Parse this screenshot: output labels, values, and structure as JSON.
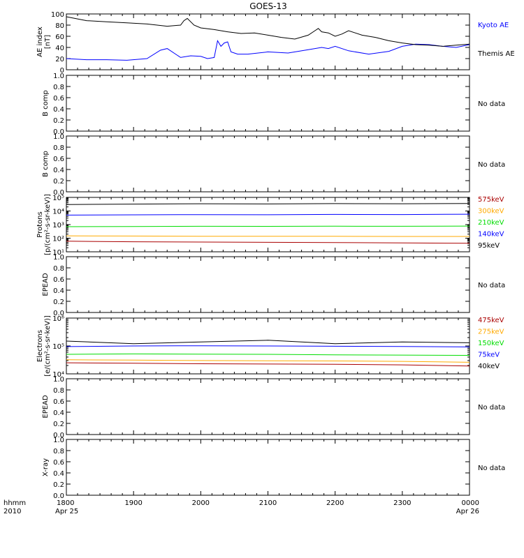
{
  "title": "GOES-13",
  "colors": {
    "black": "#000000",
    "blue": "#0000ff",
    "green": "#00dd00",
    "orange": "#ffaa00",
    "red": "#aa0000",
    "axis": "#000000"
  },
  "x_axis": {
    "ticks": [
      "1800",
      "1900",
      "2000",
      "2100",
      "2200",
      "2300",
      "0000"
    ],
    "row_labels": [
      "hhmm",
      "2010"
    ],
    "date_labels": [
      "Apr 25",
      "Apr 26"
    ]
  },
  "chart_data": [
    {
      "type": "line",
      "ylabel": [
        "AE index",
        "[nT]"
      ],
      "ylim": [
        0,
        100
      ],
      "yticks": [
        "0",
        "20",
        "40",
        "60",
        "80",
        "100"
      ],
      "series": [
        {
          "name": "Kyoto AE",
          "color": "#0000ff",
          "x": [
            0,
            0.3,
            0.6,
            0.9,
            1.2,
            1.4,
            1.5,
            1.7,
            1.85,
            2.0,
            2.1,
            2.2,
            2.25,
            2.3,
            2.35,
            2.4,
            2.45,
            2.5,
            2.55,
            2.7,
            3.0,
            3.3,
            3.6,
            3.8,
            3.9,
            4.0,
            4.2,
            4.5,
            4.8,
            5.0,
            5.2,
            5.4,
            5.6,
            5.8,
            6.0
          ],
          "y": [
            20,
            18,
            18,
            17,
            20,
            35,
            38,
            22,
            25,
            24,
            20,
            22,
            52,
            42,
            48,
            50,
            32,
            30,
            28,
            28,
            32,
            30,
            36,
            40,
            38,
            42,
            34,
            28,
            33,
            42,
            46,
            45,
            42,
            40,
            45
          ]
        },
        {
          "name": "Themis AE",
          "color": "#000000",
          "x": [
            0,
            0.3,
            0.6,
            0.9,
            1.2,
            1.5,
            1.7,
            1.75,
            1.8,
            1.9,
            2.0,
            2.2,
            2.4,
            2.6,
            2.8,
            3.0,
            3.2,
            3.4,
            3.6,
            3.7,
            3.75,
            3.8,
            3.9,
            4.0,
            4.1,
            4.2,
            4.4,
            4.6,
            4.8,
            5.0,
            5.2,
            5.4,
            5.6,
            5.8,
            6.0
          ],
          "y": [
            95,
            88,
            86,
            84,
            82,
            78,
            80,
            88,
            92,
            80,
            75,
            72,
            68,
            65,
            66,
            62,
            58,
            55,
            62,
            70,
            74,
            68,
            66,
            60,
            64,
            70,
            62,
            58,
            52,
            48,
            45,
            44,
            42,
            44,
            46
          ]
        }
      ],
      "legend": [
        {
          "label": "Kyoto AE",
          "color": "#0000ff"
        },
        {
          "label": "Themis AE",
          "color": "#000000"
        }
      ]
    },
    {
      "type": "line",
      "ylabel": [
        "B comp"
      ],
      "ylim": [
        0,
        1
      ],
      "yticks": [
        "0.0",
        "0.2",
        "0.4",
        "0.6",
        "0.8",
        "1.0"
      ],
      "series": [],
      "legend": [
        {
          "label": "No data",
          "color": "#000000"
        }
      ]
    },
    {
      "type": "line",
      "ylabel": [
        "B comp"
      ],
      "ylim": [
        0,
        1
      ],
      "yticks": [
        "0.0",
        "0.2",
        "0.4",
        "0.6",
        "0.8",
        "1.0"
      ],
      "series": [],
      "legend": [
        {
          "label": "No data",
          "color": "#000000"
        }
      ]
    },
    {
      "type": "line",
      "ylog": true,
      "ylabel": [
        "Protons",
        "[p/(cm²-s-sr-keV)]"
      ],
      "ylim": [
        10,
        100000
      ],
      "yticks": [
        "10¹",
        "10²",
        "10³",
        "10⁴",
        "10⁵"
      ],
      "series": [
        {
          "name": "95keV",
          "color": "#000000",
          "x": [
            0,
            1,
            2,
            3,
            4,
            5,
            6
          ],
          "y": [
            30000,
            32000,
            34000,
            33000,
            35000,
            34000,
            36000
          ]
        },
        {
          "name": "140keV",
          "color": "#0000ff",
          "x": [
            0,
            1,
            2,
            3,
            4,
            5,
            6
          ],
          "y": [
            5000,
            5200,
            5400,
            5300,
            5600,
            5500,
            5800
          ]
        },
        {
          "name": "210keV",
          "color": "#00dd00",
          "x": [
            0,
            1,
            2,
            3,
            4,
            5,
            6
          ],
          "y": [
            700,
            720,
            750,
            740,
            760,
            750,
            780
          ]
        },
        {
          "name": "300keV",
          "color": "#ffaa00",
          "x": [
            0,
            1,
            2,
            3,
            4,
            5,
            6
          ],
          "y": [
            150,
            145,
            140,
            140,
            138,
            135,
            135
          ]
        },
        {
          "name": "575keV",
          "color": "#aa0000",
          "x": [
            0,
            1,
            2,
            3,
            4,
            5,
            6
          ],
          "y": [
            60,
            55,
            52,
            50,
            48,
            45,
            42
          ]
        }
      ],
      "legend": [
        {
          "label": "575keV",
          "color": "#aa0000"
        },
        {
          "label": "300keV",
          "color": "#ffaa00"
        },
        {
          "label": "210keV",
          "color": "#00dd00"
        },
        {
          "label": "140keV",
          "color": "#0000ff"
        },
        {
          "label": "95keV",
          "color": "#000000"
        }
      ]
    },
    {
      "type": "line",
      "ylabel": [
        "EPEAD"
      ],
      "ylim": [
        0,
        1
      ],
      "yticks": [
        "0.0",
        "0.2",
        "0.4",
        "0.6",
        "0.8",
        "1.0"
      ],
      "series": [],
      "legend": [
        {
          "label": "No data",
          "color": "#000000"
        }
      ]
    },
    {
      "type": "line",
      "ylog": true,
      "ylabel": [
        "Electrons",
        "[e/(cm²-s-sr-keV)]"
      ],
      "ylim": [
        10000,
        1000000
      ],
      "yticks": [
        "10⁴",
        "10⁵",
        "10⁶"
      ],
      "series": [
        {
          "name": "40keV",
          "color": "#000000",
          "x": [
            0,
            1,
            2,
            3,
            4,
            5,
            6
          ],
          "y": [
            150000,
            120000,
            140000,
            160000,
            120000,
            140000,
            130000
          ]
        },
        {
          "name": "75keV",
          "color": "#0000ff",
          "x": [
            0,
            1,
            2,
            3,
            4,
            5,
            6
          ],
          "y": [
            95000,
            100000,
            102000,
            100000,
            98000,
            96000,
            92000
          ]
        },
        {
          "name": "150keV",
          "color": "#00dd00",
          "x": [
            0,
            1,
            2,
            3,
            4,
            5,
            6
          ],
          "y": [
            50000,
            52000,
            51000,
            50000,
            48000,
            47000,
            46000
          ]
        },
        {
          "name": "275keV",
          "color": "#ffaa00",
          "x": [
            0,
            1,
            2,
            3,
            4,
            5,
            6
          ],
          "y": [
            32000,
            31000,
            30000,
            29500,
            29000,
            28000,
            26000
          ]
        },
        {
          "name": "475keV",
          "color": "#aa0000",
          "x": [
            0,
            1,
            2,
            3,
            4,
            5,
            6
          ],
          "y": [
            25000,
            24000,
            23000,
            22500,
            22000,
            21000,
            19000
          ]
        }
      ],
      "legend": [
        {
          "label": "475keV",
          "color": "#aa0000"
        },
        {
          "label": "275keV",
          "color": "#ffaa00"
        },
        {
          "label": "150keV",
          "color": "#00dd00"
        },
        {
          "label": "75keV",
          "color": "#0000ff"
        },
        {
          "label": "40keV",
          "color": "#000000"
        }
      ]
    },
    {
      "type": "line",
      "ylabel": [
        "EPEAD"
      ],
      "ylim": [
        0,
        1
      ],
      "yticks": [
        "0.0",
        "0.2",
        "0.4",
        "0.6",
        "0.8",
        "1.0"
      ],
      "series": [],
      "legend": [
        {
          "label": "No data",
          "color": "#000000"
        }
      ]
    },
    {
      "type": "line",
      "ylabel": [
        "X-ray"
      ],
      "ylim": [
        0,
        1
      ],
      "yticks": [
        "0.0",
        "0.2",
        "0.4",
        "0.6",
        "0.8",
        "1.0"
      ],
      "series": [],
      "legend": [
        {
          "label": "No data",
          "color": "#000000"
        }
      ]
    }
  ]
}
